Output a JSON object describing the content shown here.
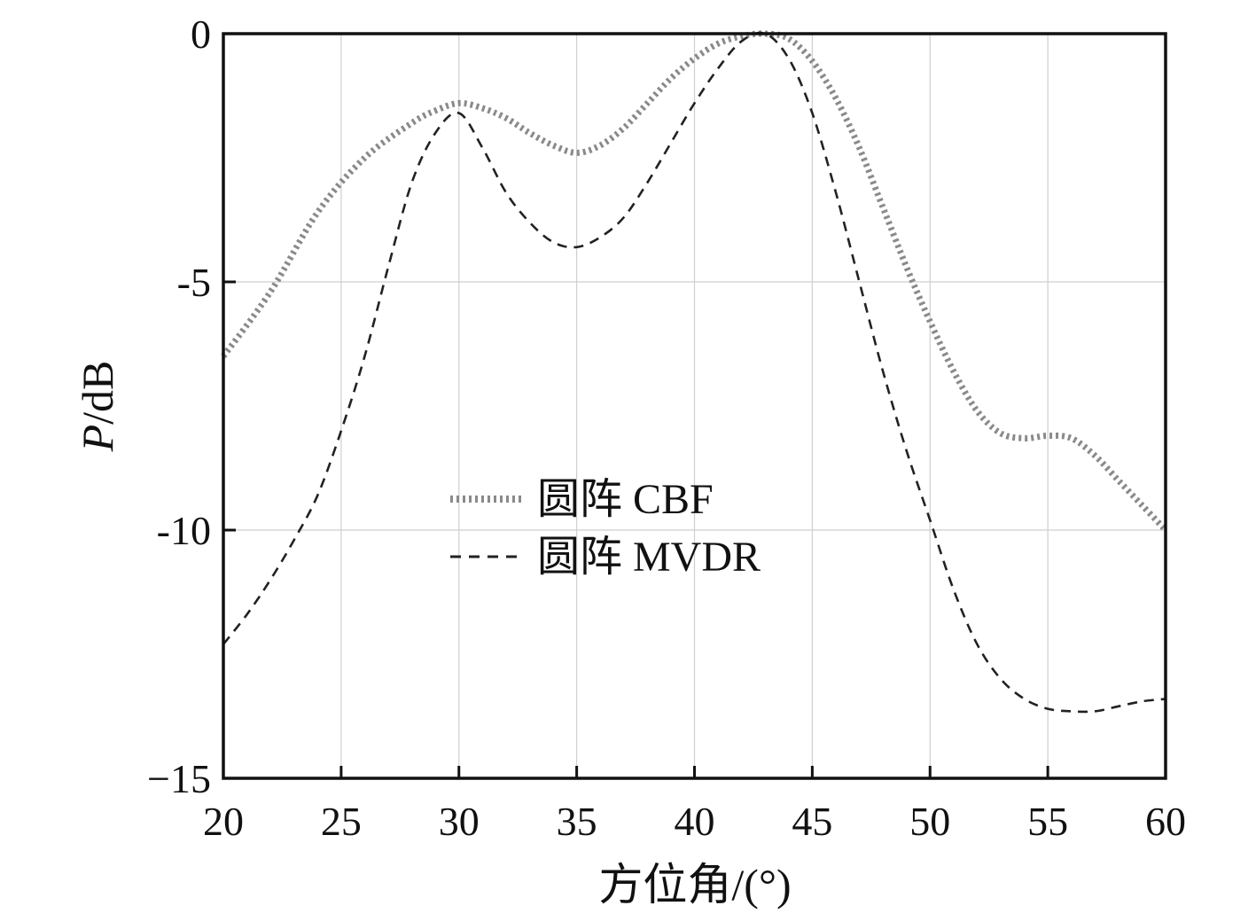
{
  "chart_data": {
    "type": "line",
    "title": "",
    "xlabel": "方位角/(°)",
    "ylabel_italic": "P",
    "ylabel_rest": "/dB",
    "xlim": [
      20,
      60
    ],
    "ylim": [
      -15,
      0
    ],
    "x_ticks": [
      20,
      25,
      30,
      35,
      40,
      45,
      50,
      55,
      60
    ],
    "y_ticks": [
      0,
      -5,
      -10,
      -15
    ],
    "x_tick_labels": [
      "20",
      "25",
      "30",
      "35",
      "40",
      "45",
      "50",
      "55",
      "60"
    ],
    "y_tick_labels": [
      "0",
      "-5",
      "-10",
      "−15"
    ],
    "grid": true,
    "legend_position": "center",
    "series": [
      {
        "name": "圆阵 CBF",
        "color": "#8a8a8a",
        "style": "dotted",
        "x": [
          20,
          22,
          24,
          26,
          28,
          29,
          30,
          31,
          32,
          33,
          34,
          35,
          36,
          37,
          38,
          39,
          40,
          41,
          42,
          43,
          44,
          45,
          46,
          47,
          48,
          49,
          50,
          51,
          52,
          53,
          54,
          55,
          56,
          57,
          58,
          59,
          60
        ],
        "y": [
          -6.5,
          -5.2,
          -3.6,
          -2.5,
          -1.8,
          -1.55,
          -1.4,
          -1.5,
          -1.7,
          -2.0,
          -2.25,
          -2.4,
          -2.25,
          -1.9,
          -1.4,
          -0.9,
          -0.5,
          -0.2,
          -0.05,
          0,
          -0.1,
          -0.55,
          -1.3,
          -2.3,
          -3.5,
          -4.7,
          -5.8,
          -6.8,
          -7.6,
          -8.05,
          -8.15,
          -8.1,
          -8.15,
          -8.5,
          -9.0,
          -9.5,
          -10.0
        ]
      },
      {
        "name": "圆阵 MVDR",
        "color": "#222222",
        "style": "dashed",
        "x": [
          20,
          21,
          22,
          23,
          24,
          25,
          26,
          27,
          28,
          29,
          30,
          31,
          32,
          33,
          34,
          35,
          36,
          37,
          38,
          39,
          40,
          41,
          42,
          43,
          44,
          45,
          46,
          47,
          48,
          49,
          50,
          51,
          52,
          53,
          54,
          55,
          56,
          57,
          58,
          59,
          60
        ],
        "y": [
          -12.3,
          -11.7,
          -11.0,
          -10.2,
          -9.3,
          -8.0,
          -6.5,
          -4.7,
          -3.0,
          -2.0,
          -1.6,
          -2.3,
          -3.2,
          -3.8,
          -4.2,
          -4.3,
          -4.1,
          -3.7,
          -3.0,
          -2.2,
          -1.4,
          -0.7,
          -0.15,
          0,
          -0.5,
          -1.6,
          -3.2,
          -5.0,
          -6.8,
          -8.4,
          -9.8,
          -11.2,
          -12.3,
          -13.0,
          -13.4,
          -13.6,
          -13.65,
          -13.65,
          -13.55,
          -13.45,
          -13.4
        ]
      }
    ]
  }
}
